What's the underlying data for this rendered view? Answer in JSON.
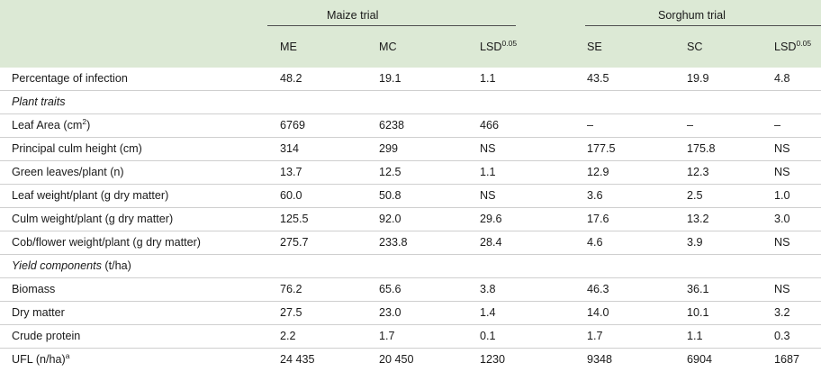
{
  "groups": {
    "maize": "Maize trial",
    "sorghum": "Sorghum trial"
  },
  "columns": {
    "me": "ME",
    "mc": "MC",
    "lsd_maize": "LSD",
    "se": "SE",
    "sc": "SC",
    "lsd_sorghum": "LSD",
    "lsd_sup": "0.05"
  },
  "rows": [
    {
      "label": "Percentage of infection",
      "me": "48.2",
      "mc": "19.1",
      "lsd1": "1.1",
      "se": "43.5",
      "sc": "19.9",
      "lsd2": "4.8"
    },
    {
      "label": "Plant traits",
      "section": true
    },
    {
      "label": "Leaf Area (cm",
      "label_sup": "2",
      "label_after": ")",
      "me": "6769",
      "mc": "6238",
      "lsd1": "466",
      "se": "–",
      "sc": "–",
      "lsd2": "–"
    },
    {
      "label": "Principal culm height (cm)",
      "me": "314",
      "mc": "299",
      "lsd1": "NS",
      "se": "177.5",
      "sc": "175.8",
      "lsd2": "NS"
    },
    {
      "label": "Green leaves/plant (n)",
      "me": "13.7",
      "mc": "12.5",
      "lsd1": "1.1",
      "se": "12.9",
      "sc": "12.3",
      "lsd2": "NS"
    },
    {
      "label": "Leaf weight/plant (g dry matter)",
      "me": "60.0",
      "mc": "50.8",
      "lsd1": "NS",
      "se": "3.6",
      "sc": "2.5",
      "lsd2": "1.0"
    },
    {
      "label": "Culm weight/plant (g dry matter)",
      "me": "125.5",
      "mc": "92.0",
      "lsd1": "29.6",
      "se": "17.6",
      "sc": "13.2",
      "lsd2": "3.0"
    },
    {
      "label": "Cob/flower weight/plant (g dry matter)",
      "me": "275.7",
      "mc": "233.8",
      "lsd1": "28.4",
      "se": "4.6",
      "sc": "3.9",
      "lsd2": "NS"
    },
    {
      "label": "Yield components",
      "label_after": " (t/ha)",
      "section": true
    },
    {
      "label": "Biomass",
      "me": "76.2",
      "mc": "65.6",
      "lsd1": "3.8",
      "se": "46.3",
      "sc": "36.1",
      "lsd2": "NS"
    },
    {
      "label": "Dry matter",
      "me": "27.5",
      "mc": "23.0",
      "lsd1": "1.4",
      "se": "14.0",
      "sc": "10.1",
      "lsd2": "3.2"
    },
    {
      "label": "Crude protein",
      "me": "2.2",
      "mc": "1.7",
      "lsd1": "0.1",
      "se": "1.7",
      "sc": "1.1",
      "lsd2": "0.3"
    },
    {
      "label": "UFL (n/ha)",
      "label_sup": "a",
      "me": "24 435",
      "mc": "20 450",
      "lsd1": "1230",
      "se": "9348",
      "sc": "6904",
      "lsd2": "1687"
    }
  ]
}
